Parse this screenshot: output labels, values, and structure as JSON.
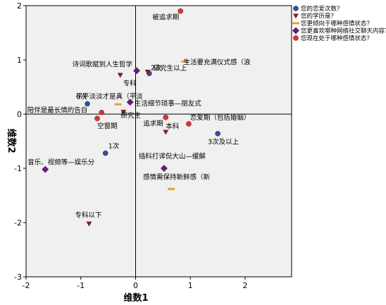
{
  "chart_data": {
    "type": "scatter",
    "xlabel": "维数1",
    "ylabel": "维数2",
    "xlim": [
      -2,
      3
    ],
    "ylim": [
      -3,
      2
    ],
    "xticks": [
      -2,
      -1,
      0,
      1,
      2
    ],
    "yticks": [
      -3,
      -2,
      -1,
      0,
      1,
      2
    ],
    "reference_lines": {
      "x": 0,
      "y": 0
    },
    "legend_position": "right",
    "series": [
      {
        "name": "您的恋爱次数？",
        "marker": "circle",
        "color": "#2f4f9f",
        "points": [
          {
            "label": "0次",
            "x": -0.88,
            "y": 0.19
          },
          {
            "label": "1次",
            "x": -0.55,
            "y": -0.72
          },
          {
            "label": "2次",
            "x": 0.25,
            "y": 0.75
          },
          {
            "label": "3次及以上",
            "x": 1.5,
            "y": -0.36
          }
        ]
      },
      {
        "name": "您的学历是？",
        "marker": "triangle-down",
        "color": "#8b1a1a",
        "points": [
          {
            "label": "专科",
            "x": -0.28,
            "y": 0.72
          },
          {
            "label": "研究生以上",
            "x": 0.22,
            "y": 0.78
          },
          {
            "label": "研究生",
            "x": -0.22,
            "y": 0.04
          },
          {
            "label": "本科",
            "x": 0.55,
            "y": -0.33
          },
          {
            "label": "专科以下",
            "x": -0.85,
            "y": -2.02
          }
        ]
      },
      {
        "name": "您更倾向于哪种感情状态？",
        "marker": "dash",
        "color": "#e8a030",
        "points": [
          {
            "label": "生活要充满仪式感（浪",
            "x": 0.9,
            "y": 0.97
          },
          {
            "label": "平平淡淡才是真（平淡",
            "x": -0.32,
            "y": 0.18
          },
          {
            "label": "感情需保持新鲜感（新",
            "x": 0.65,
            "y": -1.38
          }
        ]
      },
      {
        "name": "您更喜欢哪种网络社交聊天内容？",
        "marker": "diamond",
        "color": "#6a1b7a",
        "points": [
          {
            "label": "诗词歌赋到人生哲学",
            "x": 0.02,
            "y": 0.8
          },
          {
            "label": "生活细节琐事—朋友式",
            "x": -0.1,
            "y": 0.22
          },
          {
            "label": "音乐、视频等—娱乐分",
            "x": -1.65,
            "y": -1.02
          },
          {
            "label": "插科打诨侃大山—缓解",
            "x": 0.52,
            "y": -1.0
          }
        ]
      },
      {
        "name": "您现在处于哪种感情状态？",
        "marker": "circle",
        "color": "#e03030",
        "points": [
          {
            "label": "被追求期",
            "x": 0.82,
            "y": 1.9
          },
          {
            "label": "陪伴是最长情的告白",
            "x": -0.62,
            "y": 0.03
          },
          {
            "label": "空窗期",
            "x": -0.7,
            "y": -0.08
          },
          {
            "label": "追求期",
            "x": 0.55,
            "y": -0.06
          },
          {
            "label": "恋爱期（包括婚姻）",
            "x": 0.97,
            "y": -0.18
          }
        ]
      }
    ]
  }
}
